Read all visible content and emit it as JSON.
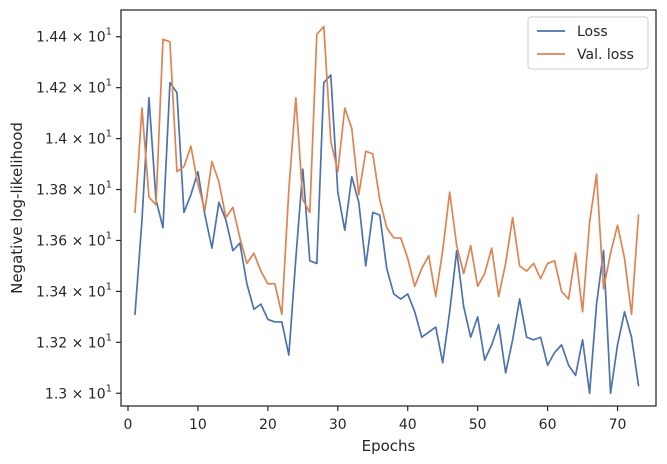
{
  "chart_data": {
    "type": "line",
    "xlabel": "Epochs",
    "ylabel": "Negative log-likelihood",
    "xlim": [
      -1,
      75.5
    ],
    "ylim": [
      12.95,
      14.505
    ],
    "x_ticks": [
      0,
      10,
      20,
      30,
      40,
      50,
      60,
      70
    ],
    "x_tick_labels": [
      "0",
      "10",
      "20",
      "30",
      "40",
      "50",
      "60",
      "70"
    ],
    "y_ticks": [
      13.0,
      13.2,
      13.4,
      13.6,
      13.8,
      14.0,
      14.2,
      14.4
    ],
    "y_tick_labels": [
      {
        "mantissa": "1.3",
        "exp": "1"
      },
      {
        "mantissa": "1.32",
        "exp": "1"
      },
      {
        "mantissa": "1.34",
        "exp": "1"
      },
      {
        "mantissa": "1.36",
        "exp": "1"
      },
      {
        "mantissa": "1.38",
        "exp": "1"
      },
      {
        "mantissa": "1.4",
        "exp": "1"
      },
      {
        "mantissa": "1.42",
        "exp": "1"
      },
      {
        "mantissa": "1.44",
        "exp": "1"
      }
    ],
    "legend_position": "top-right",
    "grid": false,
    "series": [
      {
        "name": "Loss",
        "color": "#4c72b0",
        "x": [
          1,
          2,
          3,
          4,
          5,
          6,
          7,
          8,
          9,
          10,
          11,
          12,
          13,
          14,
          15,
          16,
          17,
          18,
          19,
          20,
          21,
          22,
          23,
          24,
          25,
          26,
          27,
          28,
          29,
          30,
          31,
          32,
          33,
          34,
          35,
          36,
          37,
          38,
          39,
          40,
          41,
          42,
          43,
          44,
          45,
          46,
          47,
          48,
          49,
          50,
          51,
          52,
          53,
          54,
          55,
          56,
          57,
          58,
          59,
          60,
          61,
          62,
          63,
          64,
          65,
          66,
          67,
          68,
          69,
          70,
          71,
          72,
          73
        ],
        "y": [
          13.31,
          13.68,
          14.16,
          13.76,
          13.65,
          14.22,
          14.18,
          13.71,
          13.78,
          13.87,
          13.7,
          13.57,
          13.75,
          13.68,
          13.56,
          13.59,
          13.43,
          13.33,
          13.35,
          13.29,
          13.28,
          13.28,
          13.15,
          13.53,
          13.88,
          13.52,
          13.51,
          14.22,
          14.25,
          13.79,
          13.64,
          13.85,
          13.75,
          13.5,
          13.71,
          13.7,
          13.49,
          13.39,
          13.37,
          13.39,
          13.32,
          13.22,
          13.24,
          13.26,
          13.12,
          13.32,
          13.56,
          13.34,
          13.22,
          13.3,
          13.13,
          13.19,
          13.27,
          13.08,
          13.21,
          13.37,
          13.22,
          13.21,
          13.22,
          13.11,
          13.16,
          13.19,
          13.11,
          13.07,
          13.21,
          13.0,
          13.35,
          13.56,
          13.0,
          13.19,
          13.32,
          13.22,
          13.03
        ]
      },
      {
        "name": "Val. loss",
        "color": "#dd8452",
        "x": [
          1,
          2,
          3,
          4,
          5,
          6,
          7,
          8,
          9,
          10,
          11,
          12,
          13,
          14,
          15,
          16,
          17,
          18,
          19,
          20,
          21,
          22,
          23,
          24,
          25,
          26,
          27,
          28,
          29,
          30,
          31,
          32,
          33,
          34,
          35,
          36,
          37,
          38,
          39,
          40,
          41,
          42,
          43,
          44,
          45,
          46,
          47,
          48,
          49,
          50,
          51,
          52,
          53,
          54,
          55,
          56,
          57,
          58,
          59,
          60,
          61,
          62,
          63,
          64,
          65,
          66,
          67,
          68,
          69,
          70,
          71,
          72,
          73
        ],
        "y": [
          13.71,
          14.12,
          13.77,
          13.74,
          14.39,
          14.38,
          13.87,
          13.89,
          13.97,
          13.82,
          13.72,
          13.91,
          13.83,
          13.69,
          13.73,
          13.61,
          13.51,
          13.55,
          13.48,
          13.43,
          13.43,
          13.31,
          13.8,
          14.16,
          13.76,
          13.71,
          14.41,
          14.44,
          13.99,
          13.87,
          14.12,
          14.04,
          13.78,
          13.95,
          13.94,
          13.76,
          13.65,
          13.61,
          13.61,
          13.53,
          13.42,
          13.49,
          13.54,
          13.38,
          13.56,
          13.79,
          13.58,
          13.47,
          13.58,
          13.42,
          13.47,
          13.57,
          13.38,
          13.51,
          13.69,
          13.5,
          13.48,
          13.51,
          13.45,
          13.51,
          13.52,
          13.4,
          13.37,
          13.55,
          13.32,
          13.67,
          13.86,
          13.41,
          13.55,
          13.66,
          13.53,
          13.31,
          13.7
        ]
      }
    ]
  }
}
